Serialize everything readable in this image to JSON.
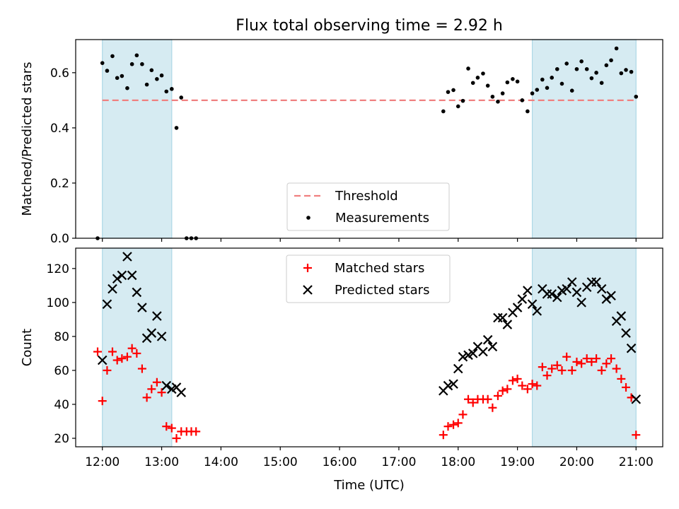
{
  "title": "Flux total observing time = 2.92 h",
  "x_tick_labels": [
    "12:00",
    "13:00",
    "14:00",
    "15:00",
    "16:00",
    "17:00",
    "18:00",
    "19:00",
    "20:00",
    "21:00"
  ],
  "chart_data": [
    {
      "type": "scatter",
      "ylabel": "Matched/Predicted stars",
      "ylim": [
        0,
        0.72
      ],
      "xlim": [
        11.55,
        21.45
      ],
      "y_ticks": [
        0,
        0.2,
        0.4,
        0.6
      ],
      "y_tick_labels": [
        "0.0",
        "0.2",
        "0.4",
        "0.6"
      ],
      "observing_windows": [
        [
          12.0,
          13.17
        ],
        [
          19.25,
          21.0
        ]
      ],
      "threshold": {
        "name": "Threshold",
        "value": 0.5,
        "color": "#f08080"
      },
      "legend": {
        "position": "lower-center",
        "entries": [
          "Threshold",
          "Measurements"
        ]
      },
      "series": [
        {
          "name": "Measurements",
          "color": "#000000",
          "points": [
            [
              11.92,
              0.0
            ],
            [
              12.0,
              0.635
            ],
            [
              12.08,
              0.607
            ],
            [
              12.17,
              0.66
            ],
            [
              12.25,
              0.581
            ],
            [
              12.33,
              0.588
            ],
            [
              12.42,
              0.544
            ],
            [
              12.5,
              0.631
            ],
            [
              12.58,
              0.663
            ],
            [
              12.67,
              0.631
            ],
            [
              12.75,
              0.557
            ],
            [
              12.83,
              0.609
            ],
            [
              12.92,
              0.577
            ],
            [
              13.0,
              0.59
            ],
            [
              13.08,
              0.532
            ],
            [
              13.17,
              0.541
            ],
            [
              13.25,
              0.4
            ],
            [
              13.33,
              0.51
            ],
            [
              13.42,
              0.0
            ],
            [
              13.5,
              0.0
            ],
            [
              13.58,
              0.0
            ],
            [
              17.75,
              0.46
            ],
            [
              17.83,
              0.53
            ],
            [
              17.92,
              0.537
            ],
            [
              18.0,
              0.478
            ],
            [
              18.08,
              0.498
            ],
            [
              18.17,
              0.615
            ],
            [
              18.25,
              0.563
            ],
            [
              18.33,
              0.582
            ],
            [
              18.42,
              0.597
            ],
            [
              18.5,
              0.553
            ],
            [
              18.58,
              0.513
            ],
            [
              18.67,
              0.495
            ],
            [
              18.75,
              0.525
            ],
            [
              18.83,
              0.565
            ],
            [
              18.92,
              0.577
            ],
            [
              19.0,
              0.568
            ],
            [
              19.08,
              0.5
            ],
            [
              19.17,
              0.46
            ],
            [
              19.25,
              0.525
            ],
            [
              19.33,
              0.538
            ],
            [
              19.42,
              0.575
            ],
            [
              19.5,
              0.545
            ],
            [
              19.58,
              0.582
            ],
            [
              19.67,
              0.613
            ],
            [
              19.75,
              0.56
            ],
            [
              19.83,
              0.633
            ],
            [
              19.92,
              0.535
            ],
            [
              20.0,
              0.613
            ],
            [
              20.08,
              0.641
            ],
            [
              20.17,
              0.613
            ],
            [
              20.25,
              0.58
            ],
            [
              20.33,
              0.6
            ],
            [
              20.42,
              0.563
            ],
            [
              20.5,
              0.627
            ],
            [
              20.58,
              0.645
            ],
            [
              20.67,
              0.688
            ],
            [
              20.75,
              0.598
            ],
            [
              20.83,
              0.61
            ],
            [
              20.92,
              0.603
            ],
            [
              21.0,
              0.513
            ]
          ]
        }
      ]
    },
    {
      "type": "scatter",
      "xlabel": "Time (UTC)",
      "ylabel": "Count",
      "ylim": [
        15,
        132
      ],
      "xlim": [
        11.55,
        21.45
      ],
      "y_ticks": [
        20,
        40,
        60,
        80,
        100,
        120
      ],
      "y_tick_labels": [
        "20",
        "40",
        "60",
        "80",
        "100",
        "120"
      ],
      "observing_windows": [
        [
          12.0,
          13.17
        ],
        [
          19.25,
          21.0
        ]
      ],
      "legend": {
        "position": "upper-center",
        "entries": [
          "Matched stars",
          "Predicted stars"
        ]
      },
      "series": [
        {
          "name": "Matched stars",
          "marker": "plus",
          "color": "#ff0000",
          "points": [
            [
              11.92,
              71
            ],
            [
              12.0,
              42
            ],
            [
              12.08,
              60
            ],
            [
              12.17,
              71
            ],
            [
              12.25,
              66
            ],
            [
              12.33,
              67
            ],
            [
              12.42,
              68
            ],
            [
              12.5,
              73
            ],
            [
              12.58,
              70
            ],
            [
              12.67,
              61
            ],
            [
              12.75,
              44
            ],
            [
              12.83,
              49
            ],
            [
              12.92,
              53
            ],
            [
              13.0,
              47
            ],
            [
              13.08,
              27
            ],
            [
              13.17,
              26
            ],
            [
              13.25,
              20
            ],
            [
              13.33,
              24
            ],
            [
              13.42,
              24
            ],
            [
              13.5,
              24
            ],
            [
              13.58,
              24
            ],
            [
              17.75,
              22
            ],
            [
              17.83,
              27
            ],
            [
              17.92,
              28
            ],
            [
              18.0,
              29
            ],
            [
              18.08,
              34
            ],
            [
              18.17,
              43
            ],
            [
              18.25,
              41
            ],
            [
              18.33,
              43
            ],
            [
              18.42,
              43
            ],
            [
              18.5,
              43
            ],
            [
              18.58,
              38
            ],
            [
              18.67,
              45
            ],
            [
              18.75,
              48
            ],
            [
              18.83,
              49
            ],
            [
              18.92,
              54
            ],
            [
              19.0,
              55
            ],
            [
              19.08,
              51
            ],
            [
              19.17,
              49
            ],
            [
              19.25,
              52
            ],
            [
              19.33,
              51
            ],
            [
              19.42,
              62
            ],
            [
              19.5,
              57
            ],
            [
              19.58,
              61
            ],
            [
              19.67,
              63
            ],
            [
              19.75,
              60
            ],
            [
              19.83,
              68
            ],
            [
              19.92,
              60
            ],
            [
              20.0,
              65
            ],
            [
              20.08,
              64
            ],
            [
              20.17,
              67
            ],
            [
              20.25,
              65
            ],
            [
              20.33,
              67
            ],
            [
              20.42,
              60
            ],
            [
              20.5,
              64
            ],
            [
              20.58,
              67
            ],
            [
              20.67,
              61
            ],
            [
              20.75,
              55
            ],
            [
              20.83,
              50
            ],
            [
              20.92,
              44
            ],
            [
              21.0,
              22
            ]
          ]
        },
        {
          "name": "Predicted stars",
          "marker": "x",
          "color": "#000000",
          "points": [
            [
              12.0,
              66
            ],
            [
              12.08,
              99
            ],
            [
              12.17,
              108
            ],
            [
              12.25,
              114
            ],
            [
              12.33,
              116
            ],
            [
              12.42,
              127
            ],
            [
              12.5,
              116
            ],
            [
              12.58,
              106
            ],
            [
              12.67,
              97
            ],
            [
              12.75,
              79
            ],
            [
              12.83,
              82
            ],
            [
              12.92,
              92
            ],
            [
              13.0,
              80
            ],
            [
              13.08,
              51
            ],
            [
              13.17,
              49
            ],
            [
              13.25,
              50
            ],
            [
              13.33,
              47
            ],
            [
              17.75,
              48
            ],
            [
              17.83,
              51
            ],
            [
              17.92,
              52
            ],
            [
              18.0,
              61
            ],
            [
              18.08,
              68
            ],
            [
              18.17,
              69
            ],
            [
              18.25,
              70
            ],
            [
              18.33,
              74
            ],
            [
              18.42,
              71
            ],
            [
              18.5,
              78
            ],
            [
              18.58,
              74
            ],
            [
              18.67,
              91
            ],
            [
              18.75,
              91
            ],
            [
              18.83,
              87
            ],
            [
              18.92,
              94
            ],
            [
              19.0,
              97
            ],
            [
              19.08,
              102
            ],
            [
              19.17,
              107
            ],
            [
              19.25,
              99
            ],
            [
              19.33,
              95
            ],
            [
              19.42,
              108
            ],
            [
              19.5,
              105
            ],
            [
              19.58,
              105
            ],
            [
              19.67,
              103
            ],
            [
              19.75,
              107
            ],
            [
              19.83,
              108
            ],
            [
              19.92,
              112
            ],
            [
              20.0,
              106
            ],
            [
              20.08,
              100
            ],
            [
              20.17,
              109
            ],
            [
              20.25,
              112
            ],
            [
              20.33,
              112
            ],
            [
              20.42,
              108
            ],
            [
              20.5,
              102
            ],
            [
              20.58,
              104
            ],
            [
              20.67,
              89
            ],
            [
              20.75,
              92
            ],
            [
              20.83,
              82
            ],
            [
              20.92,
              73
            ],
            [
              21.0,
              43
            ]
          ]
        }
      ]
    }
  ]
}
